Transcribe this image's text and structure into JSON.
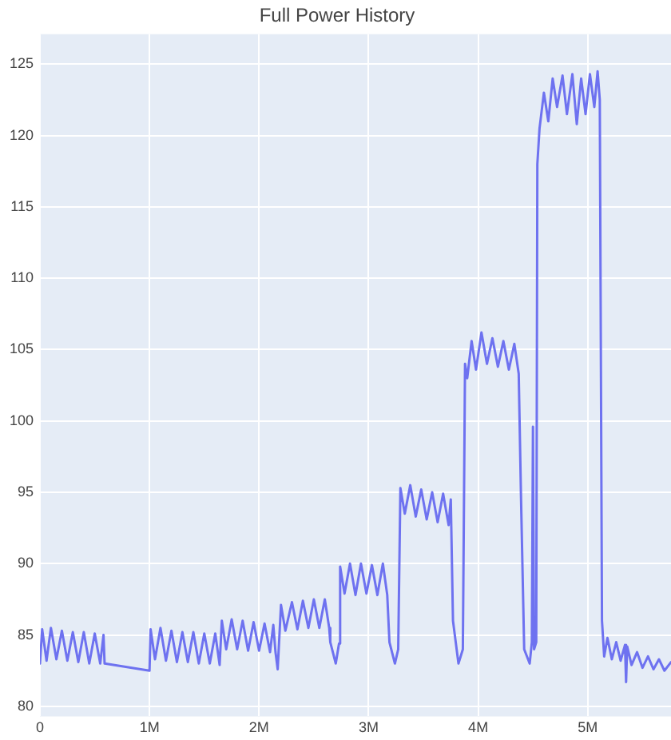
{
  "chart_data": {
    "type": "line",
    "title": "Full Power History",
    "x": [
      0,
      20000,
      60000,
      100000,
      150000,
      200000,
      250000,
      300000,
      350000,
      400000,
      450000,
      500000,
      550000,
      580000,
      590000,
      1000000,
      1010000,
      1050000,
      1100000,
      1150000,
      1200000,
      1250000,
      1300000,
      1350000,
      1400000,
      1450000,
      1500000,
      1550000,
      1600000,
      1640000,
      1660000,
      1700000,
      1750000,
      1800000,
      1850000,
      1900000,
      1950000,
      2000000,
      2050000,
      2100000,
      2130000,
      2150000,
      2170000,
      2200000,
      2240000,
      2300000,
      2350000,
      2400000,
      2450000,
      2500000,
      2550000,
      2600000,
      2640000,
      2650000,
      2700000,
      2730000,
      2740000,
      2780000,
      2830000,
      2880000,
      2930000,
      2980000,
      3030000,
      3080000,
      3130000,
      3170000,
      3190000,
      3240000,
      3270000,
      3290000,
      3330000,
      3380000,
      3430000,
      3480000,
      3530000,
      3580000,
      3630000,
      3680000,
      3730000,
      3750000,
      3770000,
      3820000,
      3860000,
      3880000,
      3900000,
      3940000,
      3980000,
      4030000,
      4080000,
      4130000,
      4180000,
      4230000,
      4280000,
      4330000,
      4370000,
      4390000,
      4420000,
      4470000,
      4490000,
      4500000,
      4510000,
      4530000,
      4540000,
      4560000,
      4600000,
      4640000,
      4680000,
      4720000,
      4770000,
      4810000,
      4860000,
      4900000,
      4940000,
      4980000,
      5020000,
      5060000,
      5090000,
      5110000,
      5130000,
      5150000,
      5180000,
      5220000,
      5260000,
      5300000,
      5340000,
      5350000,
      5360000,
      5400000,
      5450000,
      5500000,
      5550000,
      5600000,
      5650000,
      5700000,
      5760000
    ],
    "series": [
      {
        "color": "#6e72f0",
        "values": [
          83.0,
          85.4,
          83.2,
          85.5,
          83.3,
          85.3,
          83.2,
          85.2,
          83.1,
          85.2,
          83.0,
          85.1,
          83.0,
          85.0,
          83.0,
          82.5,
          85.4,
          83.3,
          85.5,
          83.2,
          85.3,
          83.1,
          85.2,
          83.1,
          85.2,
          83.0,
          85.1,
          83.0,
          85.1,
          82.9,
          86.0,
          84.0,
          86.1,
          84.0,
          86.0,
          83.9,
          85.9,
          83.9,
          85.8,
          83.8,
          85.7,
          83.8,
          82.6,
          87.1,
          85.3,
          87.3,
          85.4,
          87.4,
          85.5,
          87.5,
          85.5,
          87.5,
          85.5,
          84.5,
          83.0,
          84.4,
          89.8,
          87.9,
          90.0,
          87.8,
          90.0,
          87.9,
          89.9,
          87.8,
          90.0,
          87.8,
          84.5,
          83.0,
          84.0,
          95.3,
          93.5,
          95.5,
          93.3,
          95.2,
          93.1,
          95.0,
          92.9,
          94.9,
          92.7,
          94.5,
          86.0,
          83.0,
          84.0,
          104.0,
          103.0,
          105.6,
          103.6,
          106.2,
          104.0,
          105.8,
          103.8,
          105.6,
          103.6,
          105.4,
          103.3,
          95.0,
          84.0,
          83.0,
          84.5,
          99.6,
          84.0,
          84.5,
          118.0,
          120.5,
          123.0,
          121.0,
          124.0,
          122.0,
          124.2,
          121.5,
          124.3,
          120.8,
          124.0,
          121.5,
          124.3,
          122.0,
          124.5,
          122.5,
          86.0,
          83.5,
          84.8,
          83.3,
          84.5,
          83.2,
          84.3,
          81.7,
          84.2,
          82.9,
          83.8,
          82.7,
          83.5,
          82.6,
          83.3,
          82.5,
          83.1
        ]
      }
    ],
    "xlim": [
      0,
      5760000
    ],
    "xticks": [
      {
        "value": 0,
        "label": "0"
      },
      {
        "value": 1000000,
        "label": "1M"
      },
      {
        "value": 2000000,
        "label": "2M"
      },
      {
        "value": 3000000,
        "label": "3M"
      },
      {
        "value": 4000000,
        "label": "4M"
      },
      {
        "value": 5000000,
        "label": "5M"
      }
    ],
    "ylim": [
      79.3,
      127.1
    ],
    "yticks": [
      80,
      85,
      90,
      95,
      100,
      105,
      110,
      115,
      120,
      125
    ],
    "grid": true,
    "legend": false,
    "marker": "none",
    "line_style": "solid"
  }
}
